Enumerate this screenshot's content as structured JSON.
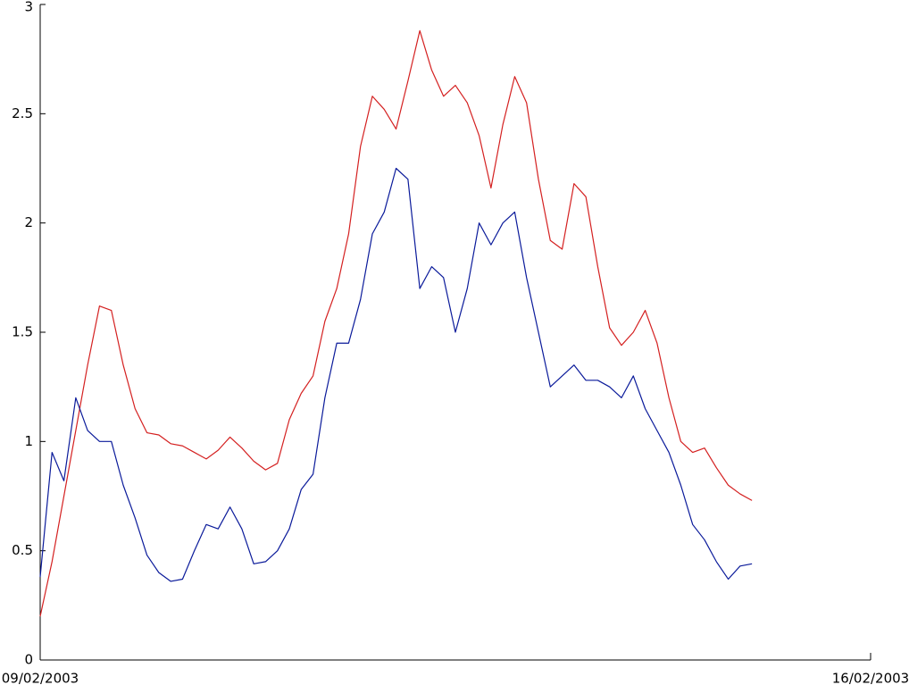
{
  "chart_data": {
    "type": "line",
    "x": [
      0,
      0.1,
      0.2,
      0.3,
      0.4,
      0.5,
      0.6,
      0.7,
      0.8,
      0.9,
      1.0,
      1.1,
      1.2,
      1.3,
      1.4,
      1.5,
      1.6,
      1.7,
      1.8,
      1.9,
      2.0,
      2.1,
      2.2,
      2.3,
      2.4,
      2.5,
      2.6,
      2.7,
      2.8,
      2.9,
      3.0,
      3.1,
      3.2,
      3.3,
      3.4,
      3.5,
      3.6,
      3.7,
      3.8,
      3.9,
      4.0,
      4.1,
      4.2,
      4.3,
      4.4,
      4.5,
      4.6,
      4.7,
      4.8,
      4.9,
      5.0,
      5.1,
      5.2,
      5.3,
      5.4,
      5.5,
      5.6,
      5.7,
      5.8,
      5.9,
      6.0
    ],
    "series": [
      {
        "color": "#d42020",
        "values": [
          0.2,
          0.45,
          0.75,
          1.05,
          1.35,
          1.62,
          1.6,
          1.35,
          1.15,
          1.04,
          1.03,
          0.99,
          0.98,
          0.95,
          0.92,
          0.96,
          1.02,
          0.97,
          0.91,
          0.87,
          0.9,
          1.1,
          1.22,
          1.3,
          1.55,
          1.7,
          1.95,
          2.35,
          2.58,
          2.52,
          2.43,
          2.65,
          2.88,
          2.7,
          2.58,
          2.63,
          2.55,
          2.4,
          2.16,
          2.45,
          2.67,
          2.55,
          2.2,
          1.92,
          1.88,
          2.18,
          2.12,
          1.8,
          1.52,
          1.44,
          1.5,
          1.6,
          1.45,
          1.2,
          1.0,
          0.95,
          0.97,
          0.88,
          0.8,
          0.76,
          0.73
        ]
      },
      {
        "color": "#0a1a9a",
        "values": [
          0.38,
          0.95,
          0.82,
          1.2,
          1.05,
          1.0,
          1.0,
          0.8,
          0.65,
          0.48,
          0.4,
          0.36,
          0.37,
          0.5,
          0.62,
          0.6,
          0.7,
          0.6,
          0.44,
          0.45,
          0.5,
          0.6,
          0.78,
          0.85,
          1.2,
          1.45,
          1.45,
          1.65,
          1.95,
          2.05,
          2.25,
          2.2,
          1.7,
          1.8,
          1.75,
          1.5,
          1.7,
          2.0,
          1.9,
          2.0,
          2.05,
          1.75,
          1.5,
          1.25,
          1.3,
          1.35,
          1.28,
          1.28,
          1.25,
          1.2,
          1.3,
          1.15,
          1.05,
          0.95,
          0.8,
          0.62,
          0.55,
          0.45,
          0.37,
          0.43,
          0.44
        ]
      }
    ],
    "xlim": [
      0,
      7
    ],
    "xticks": [
      {
        "value": 0,
        "label": "09/02/2003"
      },
      {
        "value": 7,
        "label": "16/02/2003"
      }
    ],
    "ylim": [
      0,
      3
    ],
    "yticks": [
      0,
      0.5,
      1,
      1.5,
      2,
      2.5,
      3
    ]
  }
}
